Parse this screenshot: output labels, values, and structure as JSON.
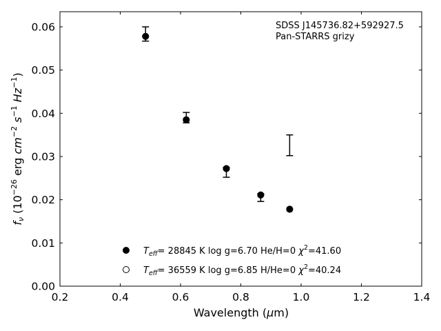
{
  "chart_data": {
    "type": "scatter",
    "xlabel_text": "Wavelength (",
    "xlabel_mu": "μ",
    "xlabel_unit": "m)",
    "ylabel_f": "f",
    "ylabel_nu": "ν",
    "ylabel_rest": " (10",
    "ylabel_exp1": "−26",
    "ylabel_erg": " erg ",
    "ylabel_cm": "cm",
    "ylabel_exp2": "−2",
    "ylabel_s": " s",
    "ylabel_exp3": "−1",
    "ylabel_hz": " Hz",
    "ylabel_exp4": "−1",
    "ylabel_close": ")",
    "xlim": [
      0.2,
      1.4
    ],
    "ylim": [
      0.0,
      0.0635
    ],
    "xticks": [
      0.2,
      0.4,
      0.6,
      0.8,
      1.0,
      1.2,
      1.4
    ],
    "xtick_labels": [
      "0.2",
      "0.4",
      "0.6",
      "0.8",
      "1.0",
      "1.2",
      "1.4"
    ],
    "yticks": [
      0.0,
      0.01,
      0.02,
      0.03,
      0.04,
      0.05,
      0.06
    ],
    "ytick_labels": [
      "0.00",
      "0.01",
      "0.02",
      "0.03",
      "0.04",
      "0.05",
      "0.06"
    ],
    "grid": false,
    "annotation_lines": [
      "SDSS J145736.82+592927.5",
      "Pan-STARRS grizy"
    ],
    "observed": [
      {
        "x": 0.484,
        "y": 0.0583,
        "lo": 0.0567,
        "hi": 0.06
      },
      {
        "x": 0.619,
        "y": 0.039,
        "lo": 0.0378,
        "hi": 0.0402
      },
      {
        "x": 0.752,
        "y": 0.0263,
        "lo": 0.0252,
        "hi": 0.0275
      },
      {
        "x": 0.866,
        "y": 0.0205,
        "lo": 0.0196,
        "hi": 0.0214
      },
      {
        "x": 0.962,
        "y": 0.0326,
        "lo": 0.0302,
        "hi": 0.035
      }
    ],
    "series": [
      {
        "marker": "filled-circle",
        "x": [
          0.484,
          0.619,
          0.752,
          0.866,
          0.962
        ],
        "y": [
          0.0578,
          0.0385,
          0.0272,
          0.0211,
          0.0178
        ]
      },
      {
        "marker": "open-circle",
        "x": [
          0.484,
          0.619,
          0.752,
          0.866,
          0.962
        ],
        "y": [
          0.0578,
          0.0385,
          0.0272,
          0.0211,
          0.0178
        ]
      }
    ],
    "legend": [
      {
        "marker": "filled-circle",
        "T": "T",
        "eff": "eff",
        "text1": "= 28845 K  log g=6.70  He/H=0  ",
        "chi": "χ",
        "sup": "2",
        "text2": "=41.60"
      },
      {
        "marker": "open-circle",
        "T": "T",
        "eff": "eff",
        "text1": "= 36559 K  log g=6.85  H/He=0  ",
        "chi": "χ",
        "sup": "2",
        "text2": "=40.24"
      }
    ],
    "legend_position": "lower-center",
    "annotation_position": "top-right"
  }
}
